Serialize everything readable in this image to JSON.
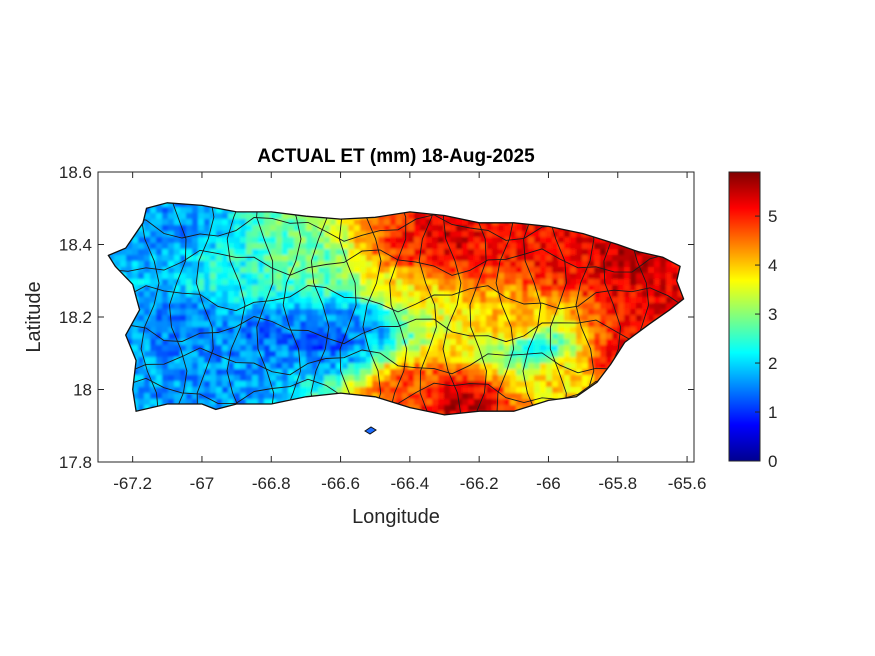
{
  "chart_data": {
    "type": "heatmap",
    "title": "ACTUAL ET (mm) 18-Aug-2025",
    "xlabel": "Longitude",
    "ylabel": "Latitude",
    "xlim": [
      -67.3,
      -65.58
    ],
    "ylim": [
      17.8,
      18.6
    ],
    "xticks": [
      -67.2,
      -67,
      -66.8,
      -66.6,
      -66.4,
      -66.2,
      -66,
      -65.8,
      -65.6
    ],
    "xtick_labels": [
      "-67.2",
      "-67",
      "-66.8",
      "-66.6",
      "-66.4",
      "-66.2",
      "-66",
      "-65.8",
      "-65.6"
    ],
    "yticks": [
      17.8,
      18,
      18.2,
      18.4,
      18.6
    ],
    "ytick_labels": [
      "17.8",
      "18",
      "18.2",
      "18.4",
      "18.6"
    ],
    "colorbar": {
      "colormap": "jet",
      "range": [
        0,
        5.9
      ],
      "ticks": [
        0,
        1,
        2,
        3,
        4,
        5
      ],
      "tick_labels": [
        "0",
        "1",
        "2",
        "3",
        "4",
        "5"
      ]
    },
    "grid": false,
    "island_outline": [
      [
        -67.27,
        18.37
      ],
      [
        -67.22,
        18.39
      ],
      [
        -67.17,
        18.46
      ],
      [
        -67.16,
        18.5
      ],
      [
        -67.1,
        18.515
      ],
      [
        -67.0,
        18.508
      ],
      [
        -66.9,
        18.49
      ],
      [
        -66.8,
        18.49
      ],
      [
        -66.7,
        18.478
      ],
      [
        -66.6,
        18.47
      ],
      [
        -66.5,
        18.475
      ],
      [
        -66.4,
        18.49
      ],
      [
        -66.3,
        18.48
      ],
      [
        -66.2,
        18.46
      ],
      [
        -66.1,
        18.46
      ],
      [
        -66.0,
        18.45
      ],
      [
        -65.9,
        18.43
      ],
      [
        -65.8,
        18.4
      ],
      [
        -65.74,
        18.38
      ],
      [
        -65.67,
        18.365
      ],
      [
        -65.62,
        18.34
      ],
      [
        -65.63,
        18.3
      ],
      [
        -65.61,
        18.25
      ],
      [
        -65.65,
        18.22
      ],
      [
        -65.71,
        18.18
      ],
      [
        -65.78,
        18.13
      ],
      [
        -65.82,
        18.07
      ],
      [
        -65.86,
        18.02
      ],
      [
        -65.92,
        17.98
      ],
      [
        -66.0,
        17.97
      ],
      [
        -66.1,
        17.94
      ],
      [
        -66.2,
        17.94
      ],
      [
        -66.3,
        17.93
      ],
      [
        -66.4,
        17.95
      ],
      [
        -66.5,
        17.98
      ],
      [
        -66.6,
        17.99
      ],
      [
        -66.7,
        17.98
      ],
      [
        -66.8,
        17.96
      ],
      [
        -66.9,
        17.96
      ],
      [
        -66.96,
        17.945
      ],
      [
        -67.0,
        17.96
      ],
      [
        -67.1,
        17.96
      ],
      [
        -67.19,
        17.94
      ],
      [
        -67.2,
        18.0
      ],
      [
        -67.19,
        18.08
      ],
      [
        -67.22,
        18.15
      ],
      [
        -67.18,
        18.22
      ],
      [
        -67.2,
        18.29
      ],
      [
        -67.25,
        18.34
      ]
    ],
    "et_hotspots": [
      {
        "lon": -66.3,
        "lat": 18.43,
        "value": 5.4
      },
      {
        "lon": -66.4,
        "lat": 18.4,
        "value": 5.0
      },
      {
        "lon": -66.15,
        "lat": 18.44,
        "value": 5.1
      },
      {
        "lon": -65.95,
        "lat": 18.38,
        "value": 5.2
      },
      {
        "lon": -65.8,
        "lat": 18.37,
        "value": 5.5
      },
      {
        "lon": -65.72,
        "lat": 18.21,
        "value": 5.3
      },
      {
        "lon": -65.78,
        "lat": 18.1,
        "value": 5.2
      },
      {
        "lon": -66.25,
        "lat": 17.97,
        "value": 5.5
      },
      {
        "lon": -66.4,
        "lat": 18.0,
        "value": 4.8
      },
      {
        "lon": -66.1,
        "lat": 18.18,
        "value": 4.2
      },
      {
        "lon": -66.45,
        "lat": 18.28,
        "value": 3.8
      },
      {
        "lon": -66.0,
        "lat": 18.05,
        "value": 3.9
      },
      {
        "lon": -66.65,
        "lat": 18.15,
        "value": 1.2
      },
      {
        "lon": -66.85,
        "lat": 18.16,
        "value": 1.4
      },
      {
        "lon": -67.05,
        "lat": 18.18,
        "value": 1.5
      },
      {
        "lon": -67.0,
        "lat": 17.99,
        "value": 1.6
      },
      {
        "lon": -67.1,
        "lat": 18.45,
        "value": 1.6
      },
      {
        "lon": -66.9,
        "lat": 18.32,
        "value": 2.4
      },
      {
        "lon": -66.7,
        "lat": 18.35,
        "value": 2.8
      },
      {
        "lon": -66.55,
        "lat": 18.2,
        "value": 1.6
      },
      {
        "lon": -66.05,
        "lat": 18.12,
        "value": 2.0
      }
    ]
  }
}
